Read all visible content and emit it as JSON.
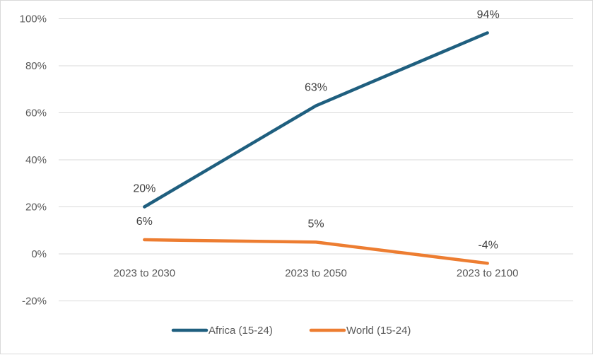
{
  "chart_data": {
    "type": "line",
    "categories": [
      "2023 to 2030",
      "2023 to 2050",
      "2023 to 2100"
    ],
    "series": [
      {
        "name": "Africa (15-24)",
        "values": [
          20,
          63,
          94
        ],
        "labels": [
          "20%",
          "63%",
          "94%"
        ],
        "color": "#1f5f7f"
      },
      {
        "name": "World (15-24)",
        "values": [
          6,
          5,
          -4
        ],
        "labels": [
          "6%",
          "5%",
          "-4%"
        ],
        "color": "#ed7d31"
      }
    ],
    "y_ticks": [
      100,
      80,
      60,
      40,
      20,
      0,
      -20
    ],
    "y_tick_labels": [
      "100%",
      "80%",
      "60%",
      "40%",
      "20%",
      "0%",
      "-20%"
    ],
    "ylim": [
      -20,
      100
    ],
    "grid": true,
    "legend_position": "bottom",
    "title": "",
    "xlabel": "",
    "ylabel": ""
  }
}
